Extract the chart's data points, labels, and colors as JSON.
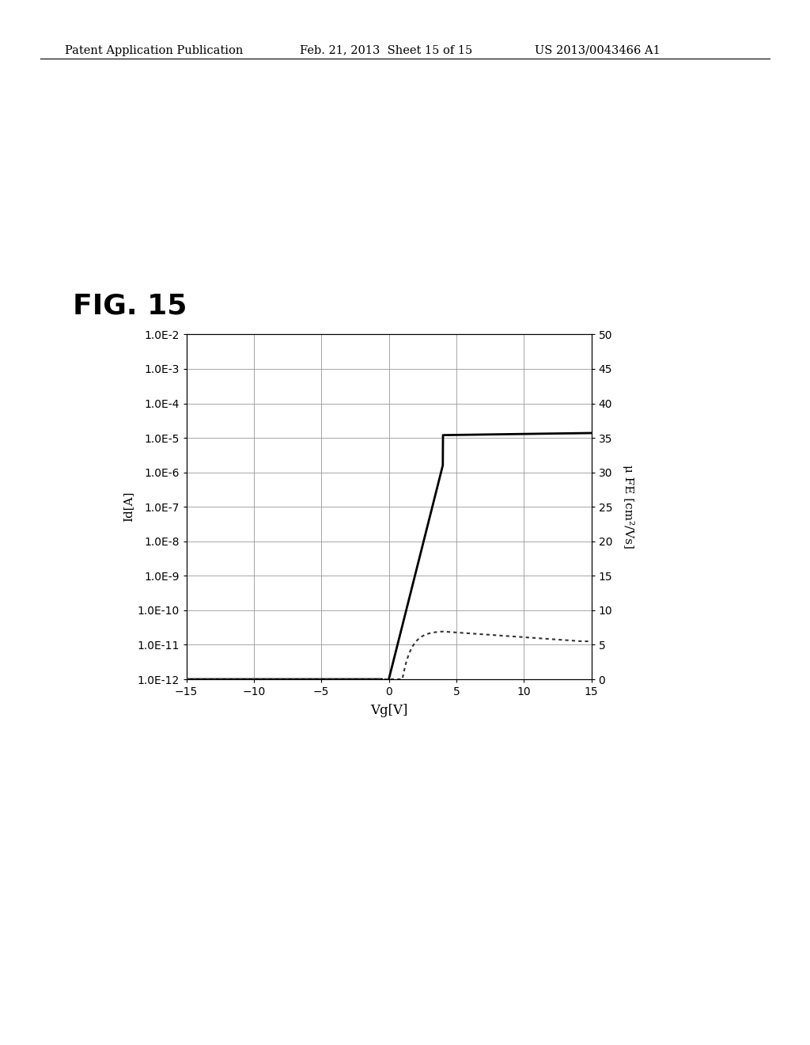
{
  "title": "FIG. 15",
  "header_left": "Patent Application Publication",
  "header_mid": "Feb. 21, 2013  Sheet 15 of 15",
  "header_right": "US 2013/0043466 A1",
  "xlabel": "Vg[V]",
  "ylabel_left": "Id[A]",
  "ylabel_right": "μ FE [cm²/Vs]",
  "xmin": -15,
  "xmax": 15,
  "ylog_min": 1e-12,
  "ylog_max": 0.01,
  "yright_min": 0,
  "yright_max": 50,
  "yright_ticks": [
    0,
    5,
    10,
    15,
    20,
    25,
    30,
    35,
    40,
    45,
    50
  ],
  "xticks": [
    -15,
    -10,
    -5,
    0,
    5,
    10,
    15
  ],
  "background_color": "#ffffff",
  "line_color": "#000000",
  "dot_line_color": "#333333"
}
